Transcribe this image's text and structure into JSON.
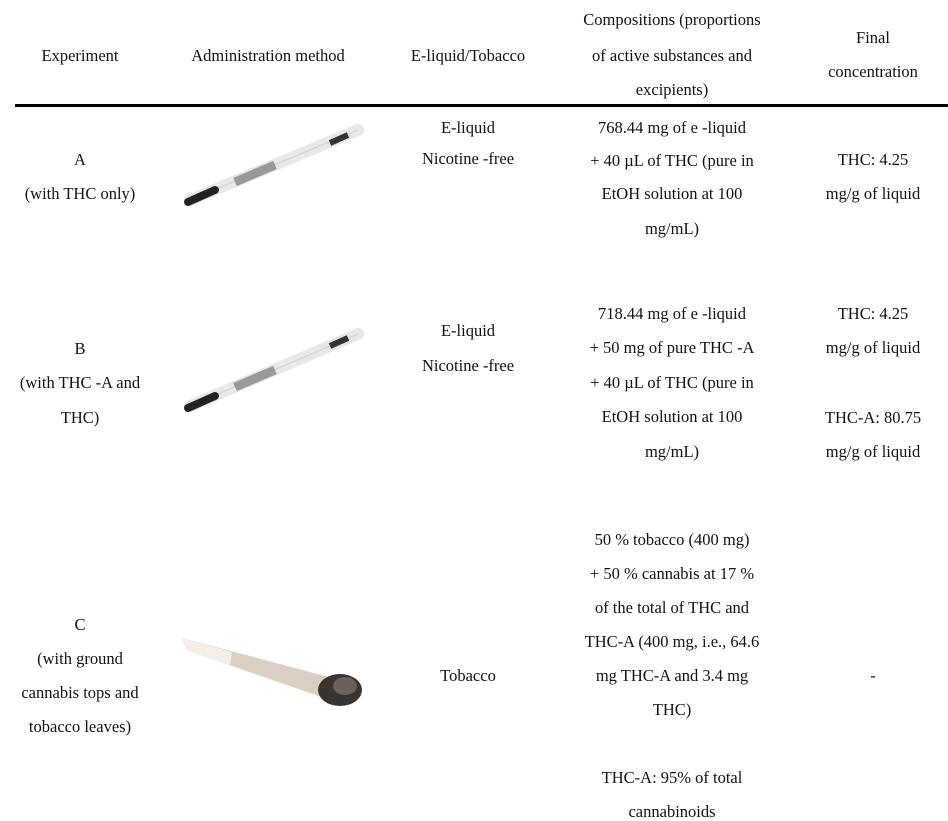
{
  "table": {
    "headers": [
      [
        "Experiment"
      ],
      [
        "Administration method"
      ],
      [
        "E-liquid/Tobacco"
      ],
      [
        "Compositions (proportions",
        "of active substances and",
        "excipients)"
      ],
      [
        "Final",
        "concentration"
      ]
    ],
    "rows": [
      {
        "experiment": [
          "A",
          "(with THC only)"
        ],
        "e_liquid_tobacco": [
          "E-liquid",
          "Nicotine -free"
        ],
        "compositions": [
          "768.44 mg of e -liquid",
          "+ 40 µL of THC (pure in",
          "EtOH solution at 100",
          "mg/mL)"
        ],
        "final_concentration": [
          "THC: 4.25",
          "mg/g of liquid"
        ]
      },
      {
        "experiment": [
          "B",
          "(with THC -A and",
          "THC)"
        ],
        "e_liquid_tobacco": [
          "E-liquid",
          "Nicotine -free"
        ],
        "compositions": [
          "718.44 mg of e -liquid",
          "+ 50 mg of pure THC -A",
          "+ 40 µL of THC (pure in",
          "EtOH solution at 100",
          "mg/mL)"
        ],
        "final_concentration": [
          "THC: 4.25",
          "mg/g of liquid",
          "THC-A: 80.75",
          "mg/g of liquid"
        ]
      },
      {
        "experiment": [
          "C",
          "(with ground",
          "cannabis tops and",
          "tobacco leaves)"
        ],
        "e_liquid_tobacco": [
          "Tobacco"
        ],
        "compositions": [
          "50 % tobacco (400 mg)",
          "+ 50 % cannabis at 17 %",
          "of the total of THC and",
          "THC-A (400 mg, i.e., 64.6",
          "mg THC-A and 3.4 mg",
          "THC)",
          "THC-A: 95% of total",
          "cannabinoids"
        ],
        "final_concentration": [
          "-"
        ]
      }
    ]
  }
}
